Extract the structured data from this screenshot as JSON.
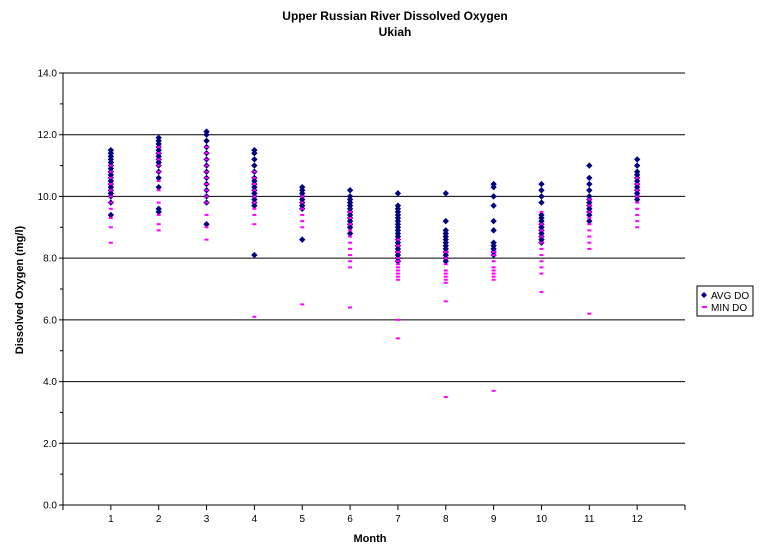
{
  "chart_data": {
    "type": "scatter",
    "title": "Upper Russian River Dissolved Oxygen",
    "subtitle": "Ukiah",
    "xlabel": "Month",
    "ylabel": "Dissolved Oxygen (mg/l)",
    "xlim": [
      0,
      13
    ],
    "ylim": [
      0,
      14
    ],
    "x_ticks": [
      "1",
      "2",
      "3",
      "4",
      "5",
      "6",
      "7",
      "8",
      "9",
      "10",
      "11",
      "12"
    ],
    "y_ticks": [
      "0.0",
      "2.0",
      "4.0",
      "6.0",
      "8.0",
      "10.0",
      "12.0",
      "14.0"
    ],
    "grid": "horizontal",
    "legend_position": "right",
    "series": [
      {
        "name": "AVG DO",
        "marker": "diamond",
        "color": "#000080",
        "points": [
          [
            1,
            9.4
          ],
          [
            1,
            9.8
          ],
          [
            1,
            10.0
          ],
          [
            1,
            10.1
          ],
          [
            1,
            10.2
          ],
          [
            1,
            10.3
          ],
          [
            1,
            10.4
          ],
          [
            1,
            10.5
          ],
          [
            1,
            10.6
          ],
          [
            1,
            10.7
          ],
          [
            1,
            10.8
          ],
          [
            1,
            10.9
          ],
          [
            1,
            11.0
          ],
          [
            1,
            11.1
          ],
          [
            1,
            11.2
          ],
          [
            1,
            11.3
          ],
          [
            1,
            11.4
          ],
          [
            1,
            11.5
          ],
          [
            2,
            9.5
          ],
          [
            2,
            9.6
          ],
          [
            2,
            10.3
          ],
          [
            2,
            10.6
          ],
          [
            2,
            10.8
          ],
          [
            2,
            11.0
          ],
          [
            2,
            11.1
          ],
          [
            2,
            11.2
          ],
          [
            2,
            11.3
          ],
          [
            2,
            11.4
          ],
          [
            2,
            11.5
          ],
          [
            2,
            11.6
          ],
          [
            2,
            11.7
          ],
          [
            2,
            11.8
          ],
          [
            2,
            11.9
          ],
          [
            3,
            9.1
          ],
          [
            3,
            9.8
          ],
          [
            3,
            10.0
          ],
          [
            3,
            10.2
          ],
          [
            3,
            10.4
          ],
          [
            3,
            10.6
          ],
          [
            3,
            10.8
          ],
          [
            3,
            11.0
          ],
          [
            3,
            11.2
          ],
          [
            3,
            11.4
          ],
          [
            3,
            11.6
          ],
          [
            3,
            11.8
          ],
          [
            3,
            12.0
          ],
          [
            3,
            12.1
          ],
          [
            4,
            8.1
          ],
          [
            4,
            9.7
          ],
          [
            4,
            9.8
          ],
          [
            4,
            9.9
          ],
          [
            4,
            10.0
          ],
          [
            4,
            10.1
          ],
          [
            4,
            10.2
          ],
          [
            4,
            10.3
          ],
          [
            4,
            10.4
          ],
          [
            4,
            10.5
          ],
          [
            4,
            10.6
          ],
          [
            4,
            10.8
          ],
          [
            4,
            11.0
          ],
          [
            4,
            11.2
          ],
          [
            4,
            11.4
          ],
          [
            4,
            11.5
          ],
          [
            5,
            8.6
          ],
          [
            5,
            9.6
          ],
          [
            5,
            9.7
          ],
          [
            5,
            9.8
          ],
          [
            5,
            9.9
          ],
          [
            5,
            10.0
          ],
          [
            5,
            10.1
          ],
          [
            5,
            10.2
          ],
          [
            5,
            10.3
          ],
          [
            6,
            8.8
          ],
          [
            6,
            9.0
          ],
          [
            6,
            9.1
          ],
          [
            6,
            9.2
          ],
          [
            6,
            9.3
          ],
          [
            6,
            9.4
          ],
          [
            6,
            9.5
          ],
          [
            6,
            9.6
          ],
          [
            6,
            9.7
          ],
          [
            6,
            9.8
          ],
          [
            6,
            9.9
          ],
          [
            6,
            10.0
          ],
          [
            6,
            10.2
          ],
          [
            7,
            7.9
          ],
          [
            7,
            8.0
          ],
          [
            7,
            8.1
          ],
          [
            7,
            8.2
          ],
          [
            7,
            8.3
          ],
          [
            7,
            8.4
          ],
          [
            7,
            8.5
          ],
          [
            7,
            8.6
          ],
          [
            7,
            8.7
          ],
          [
            7,
            8.8
          ],
          [
            7,
            8.9
          ],
          [
            7,
            9.0
          ],
          [
            7,
            9.1
          ],
          [
            7,
            9.2
          ],
          [
            7,
            9.3
          ],
          [
            7,
            9.4
          ],
          [
            7,
            9.5
          ],
          [
            7,
            9.6
          ],
          [
            7,
            9.7
          ],
          [
            7,
            10.1
          ],
          [
            8,
            7.9
          ],
          [
            8,
            8.0
          ],
          [
            8,
            8.1
          ],
          [
            8,
            8.2
          ],
          [
            8,
            8.3
          ],
          [
            8,
            8.4
          ],
          [
            8,
            8.5
          ],
          [
            8,
            8.6
          ],
          [
            8,
            8.7
          ],
          [
            8,
            8.8
          ],
          [
            8,
            8.9
          ],
          [
            8,
            9.2
          ],
          [
            8,
            10.1
          ],
          [
            9,
            8.1
          ],
          [
            9,
            8.2
          ],
          [
            9,
            8.3
          ],
          [
            9,
            8.4
          ],
          [
            9,
            8.5
          ],
          [
            9,
            8.9
          ],
          [
            9,
            9.2
          ],
          [
            9,
            9.7
          ],
          [
            9,
            10.0
          ],
          [
            9,
            10.3
          ],
          [
            9,
            10.4
          ],
          [
            10,
            8.5
          ],
          [
            10,
            8.6
          ],
          [
            10,
            8.7
          ],
          [
            10,
            8.8
          ],
          [
            10,
            8.9
          ],
          [
            10,
            9.0
          ],
          [
            10,
            9.1
          ],
          [
            10,
            9.2
          ],
          [
            10,
            9.3
          ],
          [
            10,
            9.4
          ],
          [
            10,
            9.8
          ],
          [
            10,
            10.0
          ],
          [
            10,
            10.2
          ],
          [
            10,
            10.4
          ],
          [
            11,
            9.2
          ],
          [
            11,
            9.4
          ],
          [
            11,
            9.5
          ],
          [
            11,
            9.6
          ],
          [
            11,
            9.7
          ],
          [
            11,
            9.8
          ],
          [
            11,
            9.9
          ],
          [
            11,
            10.0
          ],
          [
            11,
            10.2
          ],
          [
            11,
            10.4
          ],
          [
            11,
            10.6
          ],
          [
            11,
            11.0
          ],
          [
            12,
            9.9
          ],
          [
            12,
            10.0
          ],
          [
            12,
            10.1
          ],
          [
            12,
            10.2
          ],
          [
            12,
            10.3
          ],
          [
            12,
            10.4
          ],
          [
            12,
            10.5
          ],
          [
            12,
            10.6
          ],
          [
            12,
            10.7
          ],
          [
            12,
            10.8
          ],
          [
            12,
            11.0
          ],
          [
            12,
            11.2
          ]
        ]
      },
      {
        "name": "MIN DO",
        "marker": "dash",
        "color": "#ff00ff",
        "points": [
          [
            1,
            8.5
          ],
          [
            1,
            9.0
          ],
          [
            1,
            9.3
          ],
          [
            1,
            9.6
          ],
          [
            1,
            9.8
          ],
          [
            1,
            10.0
          ],
          [
            1,
            10.2
          ],
          [
            1,
            10.4
          ],
          [
            1,
            10.6
          ],
          [
            1,
            10.8
          ],
          [
            1,
            11.0
          ],
          [
            2,
            8.9
          ],
          [
            2,
            9.1
          ],
          [
            2,
            9.4
          ],
          [
            2,
            9.8
          ],
          [
            2,
            10.2
          ],
          [
            2,
            10.5
          ],
          [
            2,
            10.8
          ],
          [
            2,
            11.0
          ],
          [
            2,
            11.2
          ],
          [
            2,
            11.4
          ],
          [
            2,
            11.6
          ],
          [
            3,
            8.6
          ],
          [
            3,
            9.0
          ],
          [
            3,
            9.4
          ],
          [
            3,
            9.8
          ],
          [
            3,
            10.0
          ],
          [
            3,
            10.2
          ],
          [
            3,
            10.4
          ],
          [
            3,
            10.6
          ],
          [
            3,
            10.8
          ],
          [
            3,
            11.0
          ],
          [
            3,
            11.2
          ],
          [
            3,
            11.4
          ],
          [
            3,
            11.6
          ],
          [
            4,
            6.1
          ],
          [
            4,
            9.1
          ],
          [
            4,
            9.4
          ],
          [
            4,
            9.6
          ],
          [
            4,
            9.8
          ],
          [
            4,
            10.0
          ],
          [
            4,
            10.2
          ],
          [
            4,
            10.4
          ],
          [
            4,
            10.6
          ],
          [
            4,
            10.8
          ],
          [
            5,
            6.5
          ],
          [
            5,
            9.0
          ],
          [
            5,
            9.2
          ],
          [
            5,
            9.4
          ],
          [
            5,
            9.6
          ],
          [
            5,
            9.8
          ],
          [
            5,
            10.0
          ],
          [
            6,
            6.4
          ],
          [
            6,
            7.7
          ],
          [
            6,
            7.9
          ],
          [
            6,
            8.1
          ],
          [
            6,
            8.3
          ],
          [
            6,
            8.5
          ],
          [
            6,
            8.7
          ],
          [
            6,
            8.9
          ],
          [
            6,
            9.1
          ],
          [
            6,
            9.3
          ],
          [
            6,
            9.5
          ],
          [
            7,
            5.4
          ],
          [
            7,
            6.0
          ],
          [
            7,
            7.3
          ],
          [
            7,
            7.4
          ],
          [
            7,
            7.5
          ],
          [
            7,
            7.6
          ],
          [
            7,
            7.7
          ],
          [
            7,
            7.8
          ],
          [
            7,
            7.9
          ],
          [
            7,
            8.0
          ],
          [
            7,
            8.2
          ],
          [
            7,
            8.4
          ],
          [
            7,
            8.6
          ],
          [
            8,
            3.5
          ],
          [
            8,
            6.6
          ],
          [
            8,
            7.2
          ],
          [
            8,
            7.3
          ],
          [
            8,
            7.4
          ],
          [
            8,
            7.5
          ],
          [
            8,
            7.6
          ],
          [
            8,
            7.8
          ],
          [
            8,
            8.0
          ],
          [
            8,
            8.2
          ],
          [
            9,
            3.7
          ],
          [
            9,
            7.3
          ],
          [
            9,
            7.4
          ],
          [
            9,
            7.5
          ],
          [
            9,
            7.6
          ],
          [
            9,
            7.7
          ],
          [
            9,
            7.9
          ],
          [
            9,
            8.1
          ],
          [
            9,
            8.2
          ],
          [
            10,
            6.9
          ],
          [
            10,
            7.5
          ],
          [
            10,
            7.7
          ],
          [
            10,
            7.9
          ],
          [
            10,
            8.1
          ],
          [
            10,
            8.3
          ],
          [
            10,
            8.5
          ],
          [
            10,
            8.7
          ],
          [
            10,
            8.9
          ],
          [
            10,
            9.1
          ],
          [
            10,
            9.5
          ],
          [
            11,
            6.2
          ],
          [
            11,
            8.3
          ],
          [
            11,
            8.5
          ],
          [
            11,
            8.7
          ],
          [
            11,
            8.9
          ],
          [
            11,
            9.1
          ],
          [
            11,
            9.3
          ],
          [
            11,
            9.5
          ],
          [
            11,
            9.7
          ],
          [
            11,
            9.9
          ],
          [
            12,
            9.0
          ],
          [
            12,
            9.2
          ],
          [
            12,
            9.4
          ],
          [
            12,
            9.6
          ],
          [
            12,
            9.8
          ],
          [
            12,
            10.0
          ],
          [
            12,
            10.2
          ],
          [
            12,
            10.4
          ],
          [
            12,
            10.6
          ]
        ]
      }
    ]
  }
}
